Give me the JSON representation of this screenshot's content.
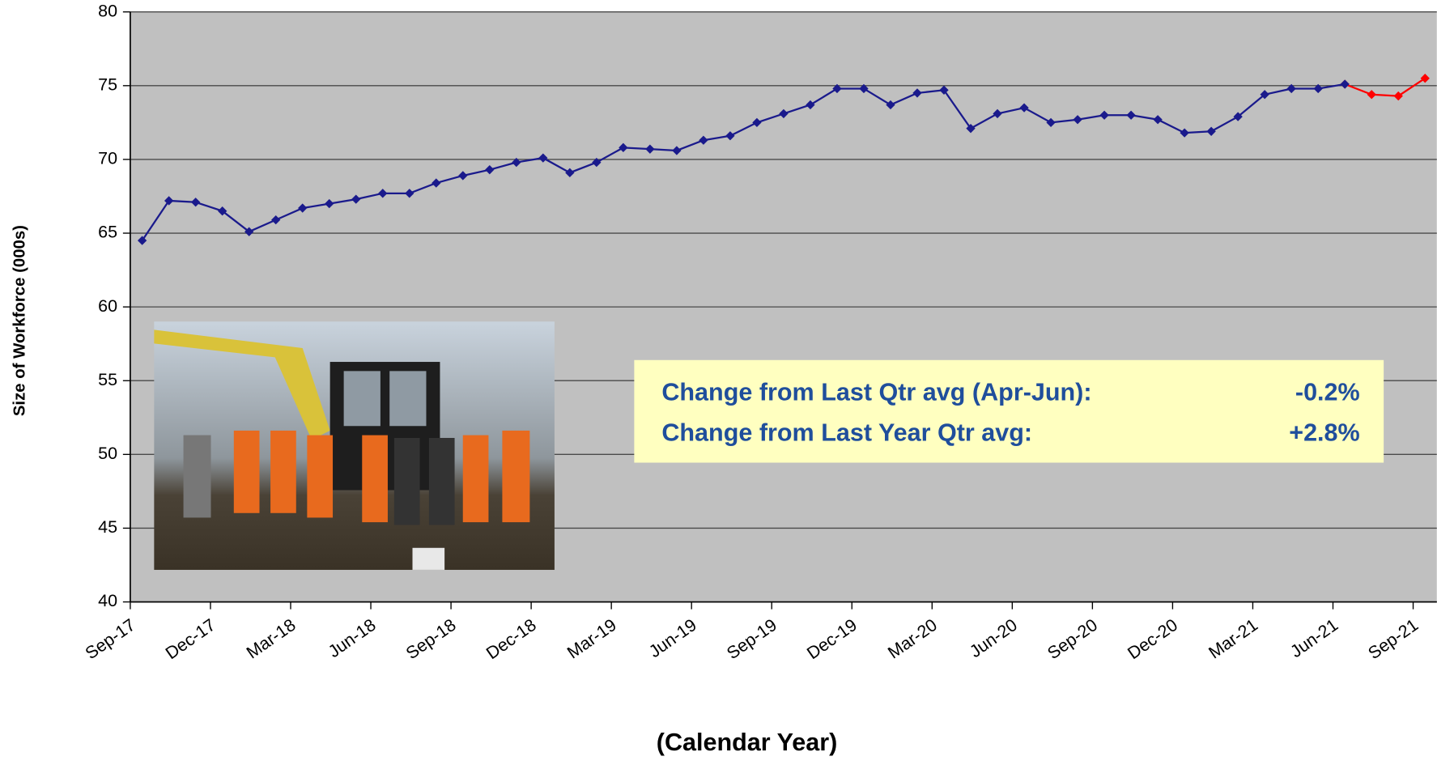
{
  "chart_data": {
    "type": "line",
    "y_axis_label": "Size of Workforce (000s)",
    "x_axis_label": "(Calendar Year)",
    "categories": [
      "Sep-17",
      null,
      null,
      "Dec-17",
      null,
      null,
      "Mar-18",
      null,
      null,
      "Jun-18",
      null,
      null,
      "Sep-18",
      null,
      null,
      "Dec-18",
      null,
      null,
      "Mar-19",
      null,
      null,
      "Jun-19",
      null,
      null,
      "Sep-19",
      null,
      null,
      "Dec-19",
      null,
      null,
      "Mar-20",
      null,
      null,
      "Jun-20",
      null,
      null,
      "Sep-20",
      null,
      null,
      "Dec-20",
      null,
      null,
      "Mar-21",
      null,
      null,
      "Jun-21",
      null,
      null,
      "Sep-21"
    ],
    "series": [
      {
        "color": "#1a1a8c",
        "values": [
          64.5,
          67.2,
          67.1,
          66.5,
          65.1,
          65.9,
          66.7,
          67.0,
          67.3,
          67.7,
          67.7,
          68.4,
          68.9,
          69.3,
          69.8,
          70.1,
          69.1,
          69.8,
          70.8,
          70.7,
          70.6,
          71.3,
          71.6,
          72.5,
          73.1,
          73.7,
          74.8,
          74.8,
          73.7,
          74.5,
          74.7,
          72.1,
          73.1,
          73.5,
          72.5,
          72.7,
          73.0,
          73.0,
          72.7,
          71.8,
          71.9,
          72.9,
          74.4,
          74.8,
          74.8,
          75.1,
          null,
          null,
          null
        ]
      },
      {
        "color": "#ff0000",
        "values": [
          null,
          null,
          null,
          null,
          null,
          null,
          null,
          null,
          null,
          null,
          null,
          null,
          null,
          null,
          null,
          null,
          null,
          null,
          null,
          null,
          null,
          null,
          null,
          null,
          null,
          null,
          null,
          null,
          null,
          null,
          null,
          null,
          null,
          null,
          null,
          null,
          null,
          null,
          null,
          null,
          null,
          null,
          null,
          null,
          null,
          75.1,
          74.4,
          74.3,
          75.5
        ]
      }
    ],
    "ylim": [
      40,
      80
    ],
    "yticks": [
      40,
      45,
      50,
      55,
      60,
      65,
      70,
      75,
      80
    ],
    "grid": true,
    "background": "#c0c0c0",
    "annotation": {
      "lines": [
        {
          "label": "Change from Last Qtr avg (Apr-Jun):",
          "value": "-0.2%"
        },
        {
          "label": "Change from Last Year Qtr avg:",
          "value": "+2.8%"
        }
      ],
      "color": "#1f4e9c",
      "fill": "#ffffc0"
    }
  }
}
